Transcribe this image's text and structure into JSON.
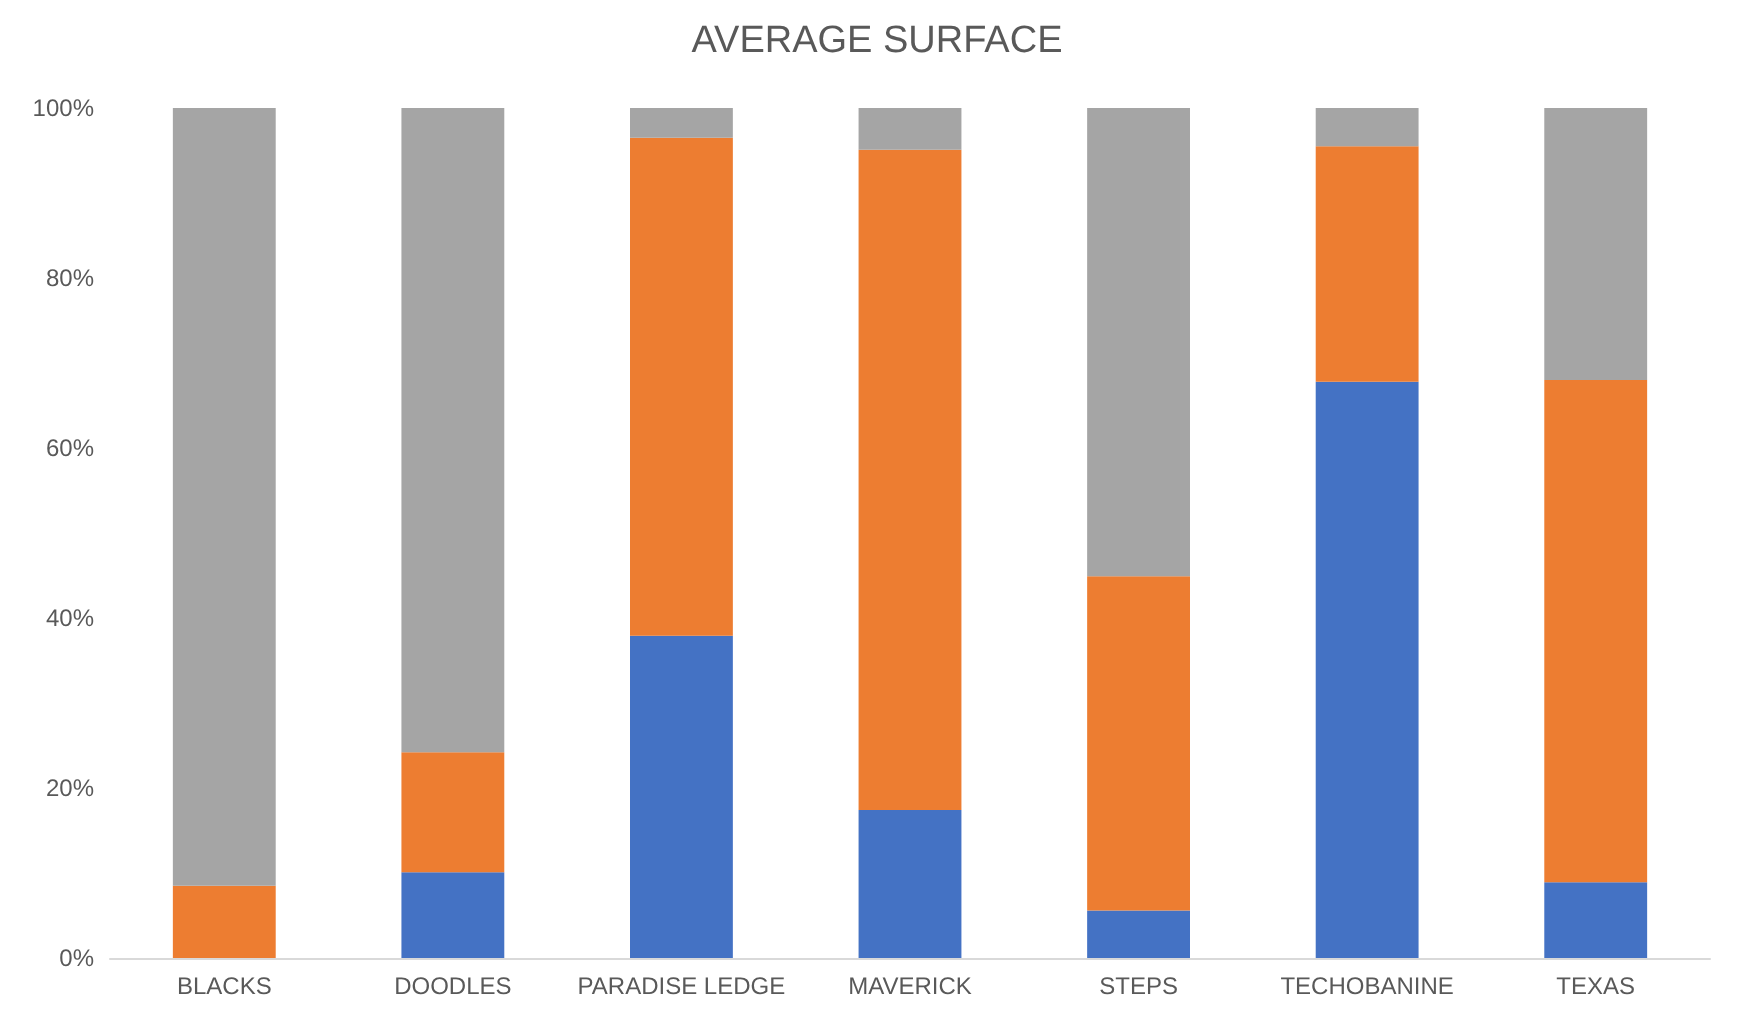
{
  "chart_data": {
    "type": "bar",
    "title": "AVERAGE SURFACE",
    "stacked": true,
    "categories": [
      "BLACKS",
      "DOODLES",
      "PARADISE LEDGE",
      "MAVERICK",
      "STEPS",
      "TECHOBANINE",
      "TEXAS"
    ],
    "series": [
      {
        "color": "#4472c4",
        "values": [
          0,
          10.1,
          37.9,
          17.4,
          5.6,
          67.8,
          8.9
        ]
      },
      {
        "color": "#ed7d31",
        "values": [
          8.5,
          14.1,
          58.6,
          77.7,
          39.3,
          27.7,
          59.1
        ]
      },
      {
        "color": "#a5a5a5",
        "values": [
          91.5,
          75.8,
          3.5,
          4.9,
          55.1,
          4.5,
          32.0
        ]
      }
    ],
    "ylim": [
      0,
      100
    ],
    "yticks": [
      {
        "value": 0,
        "label": "0%"
      },
      {
        "value": 20,
        "label": "20%"
      },
      {
        "value": 40,
        "label": "40%"
      },
      {
        "value": 60,
        "label": "60%"
      },
      {
        "value": 80,
        "label": "80%"
      },
      {
        "value": 100,
        "label": "100%"
      }
    ],
    "grid": false
  }
}
